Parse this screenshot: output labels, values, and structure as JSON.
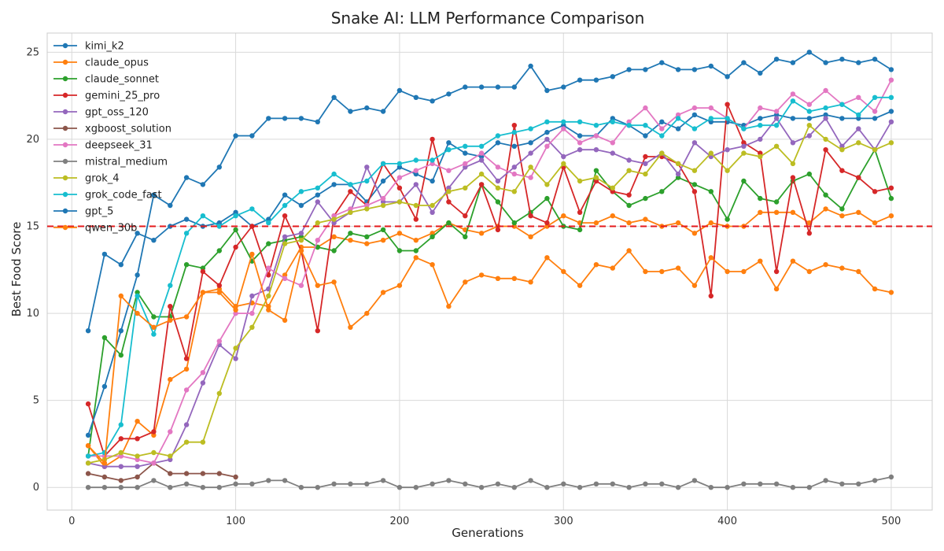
{
  "chart_data": {
    "type": "line",
    "title": "Snake AI: LLM Performance Comparison",
    "xlabel": "Generations",
    "ylabel": "Best Food Score",
    "xlim": [
      -15,
      525
    ],
    "ylim": [
      -1.3,
      26.1
    ],
    "xticks": [
      0,
      100,
      200,
      300,
      400,
      500
    ],
    "yticks": [
      0,
      5,
      10,
      15,
      20,
      25
    ],
    "grid": true,
    "legend_position": "top-left",
    "reference_line": {
      "y": 15,
      "color": "#e41a1c",
      "style": "dashed"
    },
    "x": [
      10,
      20,
      30,
      40,
      50,
      60,
      70,
      80,
      90,
      100,
      110,
      120,
      130,
      140,
      150,
      160,
      170,
      180,
      190,
      200,
      210,
      220,
      230,
      240,
      250,
      260,
      270,
      280,
      290,
      300,
      310,
      320,
      330,
      340,
      350,
      360,
      370,
      380,
      390,
      400,
      410,
      420,
      430,
      440,
      450,
      460,
      470,
      480,
      490,
      500
    ],
    "series": [
      {
        "name": "kimi_k2",
        "color": "#1f77b4",
        "x": [
          10,
          20,
          30,
          40,
          50,
          60,
          70,
          80,
          90,
          100,
          110,
          120,
          130,
          140,
          150,
          160,
          170,
          180,
          190,
          200,
          210,
          220,
          230,
          240,
          250,
          260,
          270,
          280,
          290,
          300,
          310,
          320,
          330,
          340,
          350,
          360,
          370,
          380,
          390,
          400,
          410,
          420,
          430,
          440,
          450,
          460,
          470,
          480,
          490,
          500
        ],
        "values": [
          9,
          13.4,
          12.8,
          14.6,
          14.2,
          15.0,
          15.4,
          15.0,
          15.2,
          15.8,
          15.0,
          15.4,
          16.8,
          16.2,
          16.8,
          17.4,
          17.4,
          16.4,
          17.6,
          18.4,
          18.0,
          17.6,
          19.8,
          19.2,
          19.0,
          19.8,
          19.6,
          19.8,
          20.4,
          20.8,
          20.2,
          20.2,
          21.2,
          20.8,
          20.2,
          21.0,
          20.6,
          21.4,
          21.0,
          21.0,
          20.8,
          21.2,
          21.4,
          21.2,
          21.2,
          21.4,
          21.2,
          21.2,
          21.2,
          21.6
        ]
      },
      {
        "name": "claude_opus",
        "color": "#ff7f0e",
        "x": [
          10,
          20,
          30,
          40,
          50,
          60,
          70,
          80,
          90,
          100,
          110,
          120,
          130,
          140,
          150,
          160,
          170,
          180,
          190,
          200,
          210,
          220,
          230,
          240,
          250,
          260,
          270,
          280,
          290,
          300,
          310,
          320,
          330,
          340,
          350,
          360,
          370,
          380,
          390,
          400,
          410,
          420,
          430,
          440,
          450,
          460,
          470,
          480,
          490,
          500
        ],
        "values": [
          2.4,
          1.2,
          1.8,
          3.8,
          3.0,
          6.2,
          6.8,
          11.2,
          11.4,
          10.4,
          10.6,
          10.4,
          12.2,
          13.8,
          13.8,
          14.4,
          14.2,
          14.0,
          14.2,
          14.6,
          14.2,
          14.6,
          15.2,
          14.8,
          14.6,
          15.0,
          15.0,
          14.4,
          15.0,
          15.6,
          15.2,
          15.2,
          15.6,
          15.2,
          15.4,
          15.0,
          15.2,
          14.6,
          15.2,
          15.0,
          15.0,
          15.8,
          15.8,
          15.8,
          15.2,
          16.0,
          15.6,
          15.8,
          15.2,
          15.6
        ]
      },
      {
        "name": "claude_sonnet",
        "color": "#2ca02c",
        "x": [
          10,
          20,
          30,
          40,
          50,
          60,
          70,
          80,
          90,
          100,
          110,
          120,
          130,
          140,
          150,
          160,
          170,
          180,
          190,
          200,
          210,
          220,
          230,
          240,
          250,
          260,
          270,
          280,
          290,
          300,
          310,
          320,
          330,
          340,
          350,
          360,
          370,
          380,
          390,
          400,
          410,
          420,
          430,
          440,
          450,
          460,
          470,
          480,
          490,
          500
        ],
        "values": [
          1.8,
          8.6,
          7.6,
          11.2,
          9.8,
          9.8,
          12.8,
          12.6,
          13.6,
          14.8,
          13.0,
          14.0,
          14.2,
          14.4,
          13.8,
          13.6,
          14.6,
          14.4,
          14.8,
          13.6,
          13.6,
          14.4,
          15.2,
          14.4,
          17.4,
          16.4,
          15.2,
          15.8,
          16.6,
          15.0,
          14.8,
          18.2,
          17.0,
          16.2,
          16.6,
          17.0,
          17.8,
          17.4,
          17.0,
          15.4,
          17.6,
          16.6,
          16.4,
          17.6,
          18.0,
          16.8,
          16.0,
          17.8,
          19.4,
          16.6
        ]
      },
      {
        "name": "gemini_25_pro",
        "color": "#d62728",
        "x": [
          10,
          20,
          30,
          40,
          50,
          60,
          70,
          80,
          90,
          100,
          110,
          120,
          130,
          140,
          150,
          160,
          170,
          180,
          190,
          200,
          210,
          220,
          230,
          240,
          250,
          260,
          270,
          280,
          290,
          300,
          310,
          320,
          330,
          340,
          350,
          360,
          370,
          380,
          390,
          400,
          410,
          420,
          430,
          440,
          450,
          460,
          470,
          480,
          490,
          500
        ],
        "values": [
          4.8,
          1.8,
          2.8,
          2.8,
          3.2,
          10.4,
          7.4,
          12.4,
          11.6,
          13.8,
          15.0,
          12.2,
          15.6,
          13.6,
          9.0,
          15.6,
          17.0,
          16.2,
          18.6,
          17.2,
          15.4,
          20.0,
          16.4,
          15.6,
          17.4,
          14.8,
          20.8,
          15.6,
          15.2,
          18.4,
          15.8,
          17.6,
          17.0,
          16.8,
          19.0,
          19.0,
          18.6,
          17.0,
          11.0,
          22.0,
          19.8,
          19.2,
          12.4,
          17.8,
          14.6,
          19.4,
          18.2,
          17.8,
          17.0,
          17.2
        ]
      },
      {
        "name": "gpt_oss_120",
        "color": "#9467bd",
        "x": [
          10,
          20,
          30,
          40,
          50,
          60,
          70,
          80,
          90,
          100,
          110,
          120,
          130,
          140,
          150,
          160,
          170,
          180,
          190,
          200,
          210,
          220,
          230,
          240,
          250,
          260,
          270,
          280,
          290,
          300,
          310,
          320,
          330,
          340,
          350,
          360,
          370,
          380,
          390,
          400,
          410,
          420,
          430,
          440,
          450,
          460,
          470,
          480,
          490,
          500
        ],
        "values": [
          1.4,
          1.2,
          1.2,
          1.2,
          1.4,
          1.6,
          3.6,
          6.0,
          8.2,
          7.4,
          11.0,
          11.4,
          14.4,
          14.6,
          16.4,
          15.2,
          15.8,
          18.4,
          16.4,
          16.4,
          17.4,
          15.8,
          17.2,
          18.4,
          18.8,
          17.6,
          18.4,
          19.2,
          20.0,
          19.0,
          19.4,
          19.4,
          19.2,
          18.8,
          18.6,
          19.2,
          18.0,
          19.8,
          19.0,
          19.4,
          19.6,
          20.0,
          21.2,
          19.8,
          20.2,
          21.2,
          19.6,
          20.6,
          19.4,
          21.0
        ]
      },
      {
        "name": "xgboost_solution",
        "color": "#8c564b",
        "x": [
          10,
          20,
          30,
          40,
          50,
          60,
          70,
          80,
          90,
          100
        ],
        "values": [
          0.8,
          0.6,
          0.4,
          0.6,
          1.4,
          0.8,
          0.8,
          0.8,
          0.8,
          0.6
        ]
      },
      {
        "name": "deepseek_31",
        "color": "#e377c2",
        "x": [
          10,
          20,
          30,
          40,
          50,
          60,
          70,
          80,
          90,
          100,
          110,
          120,
          130,
          140,
          150,
          160,
          170,
          180,
          190,
          200,
          210,
          220,
          230,
          240,
          250,
          260,
          270,
          280,
          290,
          300,
          310,
          320,
          330,
          340,
          350,
          360,
          370,
          380,
          390,
          400,
          410,
          420,
          430,
          440,
          450,
          460,
          470,
          480,
          490,
          500
        ],
        "values": [
          1.8,
          1.8,
          1.8,
          1.6,
          1.4,
          3.2,
          5.6,
          6.6,
          8.4,
          10.0,
          10.0,
          12.6,
          12.0,
          11.6,
          14.2,
          15.6,
          16.0,
          16.2,
          16.6,
          17.8,
          18.2,
          18.6,
          18.2,
          18.6,
          19.2,
          18.4,
          18.0,
          17.8,
          19.6,
          20.6,
          19.8,
          20.2,
          19.8,
          21.0,
          21.8,
          20.6,
          21.4,
          21.8,
          21.8,
          21.2,
          20.6,
          21.8,
          21.6,
          22.6,
          22.0,
          22.8,
          22.0,
          22.4,
          21.6,
          23.4
        ]
      },
      {
        "name": "mistral_medium",
        "color": "#7f7f7f",
        "x": [
          10,
          20,
          30,
          40,
          50,
          60,
          70,
          80,
          90,
          100,
          110,
          120,
          130,
          140,
          150,
          160,
          170,
          180,
          190,
          200,
          210,
          220,
          230,
          240,
          250,
          260,
          270,
          280,
          290,
          300,
          310,
          320,
          330,
          340,
          350,
          360,
          370,
          380,
          390,
          400,
          410,
          420,
          430,
          440,
          450,
          460,
          470,
          480,
          490,
          500
        ],
        "values": [
          0,
          0,
          0,
          0,
          0.4,
          0,
          0.2,
          0,
          0,
          0.2,
          0.2,
          0.4,
          0.4,
          0,
          0,
          0.2,
          0.2,
          0.2,
          0.4,
          0,
          0,
          0.2,
          0.4,
          0.2,
          0,
          0.2,
          0,
          0.4,
          0,
          0.2,
          0,
          0.2,
          0.2,
          0,
          0.2,
          0.2,
          0,
          0.4,
          0,
          0,
          0.2,
          0.2,
          0.2,
          0,
          0,
          0.4,
          0.2,
          0.2,
          0.4,
          0.6
        ]
      },
      {
        "name": "grok_4",
        "color": "#bcbd22",
        "x": [
          10,
          20,
          30,
          40,
          50,
          60,
          70,
          80,
          90,
          100,
          110,
          120,
          130,
          140,
          150,
          160,
          170,
          180,
          190,
          200,
          210,
          220,
          230,
          240,
          250,
          260,
          270,
          280,
          290,
          300,
          310,
          320,
          330,
          340,
          350,
          360,
          370,
          380,
          390,
          400,
          410,
          420,
          430,
          440,
          450,
          460,
          470,
          480,
          490,
          500
        ],
        "values": [
          1.4,
          1.6,
          2.0,
          1.8,
          2.0,
          1.8,
          2.6,
          2.6,
          5.4,
          8.0,
          9.2,
          11.0,
          14.0,
          14.2,
          15.2,
          15.4,
          15.8,
          16.0,
          16.2,
          16.4,
          16.2,
          16.2,
          17.0,
          17.2,
          18.0,
          17.2,
          17.0,
          18.4,
          17.4,
          18.6,
          17.6,
          17.8,
          17.2,
          18.2,
          18.0,
          19.2,
          18.6,
          18.2,
          19.2,
          18.2,
          19.2,
          19.0,
          19.6,
          18.6,
          20.8,
          20.0,
          19.4,
          19.8,
          19.4,
          19.8
        ]
      },
      {
        "name": "grok_code_fast",
        "color": "#17becf",
        "x": [
          10,
          20,
          30,
          40,
          50,
          60,
          70,
          80,
          90,
          100,
          110,
          120,
          130,
          140,
          150,
          160,
          170,
          180,
          190,
          200,
          210,
          220,
          230,
          240,
          250,
          260,
          270,
          280,
          290,
          300,
          310,
          320,
          330,
          340,
          350,
          360,
          370,
          380,
          390,
          400,
          410,
          420,
          430,
          440,
          450,
          460,
          470,
          480,
          490,
          500
        ],
        "values": [
          1.8,
          2.0,
          3.6,
          11.0,
          8.8,
          11.6,
          14.6,
          15.6,
          15.0,
          15.6,
          16.0,
          15.2,
          16.2,
          17.0,
          17.2,
          18.0,
          17.4,
          17.6,
          18.6,
          18.6,
          18.8,
          18.8,
          19.4,
          19.6,
          19.6,
          20.2,
          20.4,
          20.6,
          21.0,
          21.0,
          21.0,
          20.8,
          21.0,
          20.8,
          20.8,
          20.2,
          21.2,
          20.6,
          21.2,
          21.2,
          20.6,
          20.8,
          20.8,
          22.2,
          21.6,
          21.8,
          22.0,
          21.4,
          22.4,
          22.4
        ]
      },
      {
        "name": "gpt_5",
        "color": "#1f77b4",
        "x": [
          10,
          20,
          30,
          40,
          50,
          60,
          70,
          80,
          90,
          100,
          110,
          120,
          130,
          140,
          150,
          160,
          170,
          180,
          190,
          200,
          210,
          220,
          230,
          240,
          250,
          260,
          270,
          280,
          290,
          300,
          310,
          320,
          330,
          340,
          350,
          360,
          370,
          380,
          390,
          400,
          410,
          420,
          430,
          440,
          450,
          460,
          470,
          480,
          490,
          500
        ],
        "values": [
          3.0,
          5.8,
          9.0,
          12.2,
          16.8,
          16.2,
          17.8,
          17.4,
          18.4,
          20.2,
          20.2,
          21.2,
          21.2,
          21.2,
          21.0,
          22.4,
          21.6,
          21.8,
          21.6,
          22.8,
          22.4,
          22.2,
          22.6,
          23.0,
          23.0,
          23.0,
          23.0,
          24.2,
          22.8,
          23.0,
          23.4,
          23.4,
          23.6,
          24.0,
          24.0,
          24.4,
          24.0,
          24.0,
          24.2,
          23.6,
          24.4,
          23.8,
          24.6,
          24.4,
          25.0,
          24.4,
          24.6,
          24.4,
          24.6,
          24.0
        ]
      },
      {
        "name": "qwen_30b",
        "color": "#ff7f0e",
        "x": [
          10,
          20,
          30,
          40,
          50,
          60,
          70,
          80,
          90,
          100,
          110,
          120,
          130,
          140,
          150,
          160,
          170,
          180,
          190,
          200,
          210,
          220,
          230,
          240,
          250,
          260,
          270,
          280,
          290,
          300,
          310,
          320,
          330,
          340,
          350,
          360,
          370,
          380,
          390,
          400,
          410,
          420,
          430,
          440,
          450,
          460,
          470,
          480,
          490,
          500
        ],
        "values": [
          2.4,
          1.4,
          11.0,
          10.0,
          9.2,
          9.6,
          9.8,
          11.2,
          11.2,
          10.2,
          13.4,
          10.2,
          9.6,
          13.6,
          11.6,
          11.8,
          9.2,
          10.0,
          11.2,
          11.6,
          13.2,
          12.8,
          10.4,
          11.8,
          12.2,
          12.0,
          12.0,
          11.8,
          13.2,
          12.4,
          11.6,
          12.8,
          12.6,
          13.6,
          12.4,
          12.4,
          12.6,
          11.6,
          13.2,
          12.4,
          12.4,
          13.0,
          11.4,
          13.0,
          12.4,
          12.8,
          12.6,
          12.4,
          11.4,
          11.2
        ]
      }
    ]
  }
}
